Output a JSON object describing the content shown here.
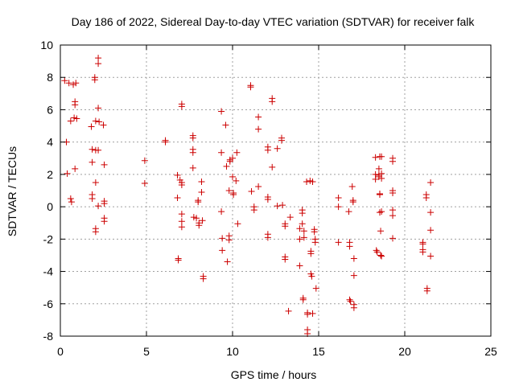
{
  "chart_data": {
    "type": "scatter",
    "title": "Day 186 of 2022, Sidereal Day-to-day VTEC variation (SDTVAR) for receiver falk",
    "xlabel": "GPS time / hours",
    "ylabel": "SDTVAR / TECUs",
    "xlim": [
      0,
      25
    ],
    "ylim": [
      -8,
      10
    ],
    "xticks": [
      0,
      5,
      10,
      15,
      20,
      25
    ],
    "yticks": [
      -8,
      -6,
      -4,
      -2,
      0,
      2,
      4,
      6,
      8,
      10
    ],
    "grid": true,
    "legend": "none",
    "marker": "plus",
    "color": "#cc0000",
    "points": [
      [
        0.25,
        7.8
      ],
      [
        0.35,
        4.0
      ],
      [
        0.4,
        2.05
      ],
      [
        0.5,
        7.65
      ],
      [
        0.6,
        5.3
      ],
      [
        0.6,
        0.5
      ],
      [
        0.65,
        0.3
      ],
      [
        0.75,
        7.55
      ],
      [
        0.8,
        5.5
      ],
      [
        0.85,
        6.5
      ],
      [
        0.85,
        6.3
      ],
      [
        0.85,
        2.35
      ],
      [
        0.9,
        7.65
      ],
      [
        0.95,
        5.45
      ],
      [
        1.8,
        4.95
      ],
      [
        1.85,
        3.55
      ],
      [
        1.85,
        2.75
      ],
      [
        1.85,
        0.75
      ],
      [
        1.85,
        0.5
      ],
      [
        2.0,
        8.0
      ],
      [
        2.0,
        7.85
      ],
      [
        2.05,
        5.3
      ],
      [
        2.05,
        3.5
      ],
      [
        2.05,
        1.5
      ],
      [
        2.05,
        -1.35
      ],
      [
        2.05,
        -1.55
      ],
      [
        2.2,
        9.2
      ],
      [
        2.2,
        8.85
      ],
      [
        2.2,
        6.1
      ],
      [
        2.2,
        3.5
      ],
      [
        2.2,
        0.05
      ],
      [
        2.25,
        5.25
      ],
      [
        2.5,
        5.05
      ],
      [
        2.55,
        2.6
      ],
      [
        2.55,
        0.35
      ],
      [
        2.55,
        0.2
      ],
      [
        2.55,
        -0.7
      ],
      [
        2.55,
        -0.9
      ],
      [
        4.9,
        2.85
      ],
      [
        4.9,
        1.45
      ],
      [
        6.1,
        4.1
      ],
      [
        6.1,
        4.0
      ],
      [
        6.8,
        1.95
      ],
      [
        6.8,
        0.55
      ],
      [
        6.85,
        -3.2
      ],
      [
        6.85,
        -3.3
      ],
      [
        6.95,
        1.65
      ],
      [
        7.05,
        6.35
      ],
      [
        7.05,
        6.2
      ],
      [
        7.05,
        1.5
      ],
      [
        7.05,
        1.35
      ],
      [
        7.05,
        -0.45
      ],
      [
        7.05,
        -0.9
      ],
      [
        7.05,
        -1.25
      ],
      [
        7.7,
        4.4
      ],
      [
        7.7,
        4.25
      ],
      [
        7.7,
        3.55
      ],
      [
        7.7,
        3.35
      ],
      [
        7.7,
        2.4
      ],
      [
        7.75,
        -0.65
      ],
      [
        7.9,
        -0.7
      ],
      [
        8.0,
        0.4
      ],
      [
        8.0,
        0.3
      ],
      [
        8.05,
        -1.0
      ],
      [
        8.05,
        -1.15
      ],
      [
        8.2,
        1.55
      ],
      [
        8.2,
        0.9
      ],
      [
        8.25,
        -0.85
      ],
      [
        8.3,
        -4.3
      ],
      [
        8.3,
        -4.45
      ],
      [
        9.35,
        5.9
      ],
      [
        9.35,
        3.35
      ],
      [
        9.35,
        -0.3
      ],
      [
        9.4,
        -1.95
      ],
      [
        9.4,
        -2.7
      ],
      [
        9.6,
        5.05
      ],
      [
        9.65,
        2.5
      ],
      [
        9.7,
        -3.4
      ],
      [
        9.8,
        1.0
      ],
      [
        9.8,
        -1.8
      ],
      [
        9.8,
        -2.05
      ],
      [
        9.85,
        2.9
      ],
      [
        9.85,
        2.8
      ],
      [
        10.0,
        3.0
      ],
      [
        10.0,
        1.85
      ],
      [
        10.05,
        0.85
      ],
      [
        10.05,
        0.75
      ],
      [
        10.2,
        1.6
      ],
      [
        10.25,
        3.35
      ],
      [
        10.3,
        -1.05
      ],
      [
        11.05,
        7.5
      ],
      [
        11.05,
        7.4
      ],
      [
        11.1,
        0.95
      ],
      [
        11.25,
        0.0
      ],
      [
        11.25,
        -0.2
      ],
      [
        11.5,
        5.55
      ],
      [
        11.5,
        4.8
      ],
      [
        11.5,
        1.25
      ],
      [
        12.05,
        3.7
      ],
      [
        12.05,
        3.5
      ],
      [
        12.05,
        0.6
      ],
      [
        12.05,
        0.45
      ],
      [
        12.05,
        -1.7
      ],
      [
        12.05,
        -1.9
      ],
      [
        12.3,
        6.7
      ],
      [
        12.3,
        6.5
      ],
      [
        12.3,
        2.45
      ],
      [
        12.6,
        3.6
      ],
      [
        12.6,
        0.05
      ],
      [
        12.85,
        4.25
      ],
      [
        12.85,
        4.1
      ],
      [
        12.9,
        0.1
      ],
      [
        13.05,
        -1.05
      ],
      [
        13.05,
        -1.2
      ],
      [
        13.05,
        -3.1
      ],
      [
        13.05,
        -3.25
      ],
      [
        13.25,
        -6.45
      ],
      [
        13.35,
        -0.65
      ],
      [
        13.9,
        -1.35
      ],
      [
        13.9,
        -2.0
      ],
      [
        13.9,
        -3.65
      ],
      [
        14.05,
        -0.2
      ],
      [
        14.05,
        -0.4
      ],
      [
        14.05,
        -1.05
      ],
      [
        14.1,
        -5.75
      ],
      [
        14.1,
        -5.65
      ],
      [
        14.15,
        -1.5
      ],
      [
        14.15,
        -1.9
      ],
      [
        14.3,
        1.55
      ],
      [
        14.35,
        -6.55
      ],
      [
        14.35,
        -6.65
      ],
      [
        14.35,
        -7.6
      ],
      [
        14.35,
        -7.85
      ],
      [
        14.5,
        1.6
      ],
      [
        14.55,
        -2.75
      ],
      [
        14.55,
        -2.9
      ],
      [
        14.55,
        -4.15
      ],
      [
        14.6,
        -4.3
      ],
      [
        14.65,
        1.55
      ],
      [
        14.65,
        -6.6
      ],
      [
        14.75,
        -1.4
      ],
      [
        14.75,
        -1.55
      ],
      [
        14.8,
        -2.0
      ],
      [
        14.8,
        -2.2
      ],
      [
        14.85,
        -5.05
      ],
      [
        16.15,
        0.55
      ],
      [
        16.15,
        0.0
      ],
      [
        16.15,
        -2.2
      ],
      [
        16.75,
        -0.3
      ],
      [
        16.8,
        -2.2
      ],
      [
        16.8,
        -2.45
      ],
      [
        16.8,
        -5.75
      ],
      [
        16.85,
        -5.85
      ],
      [
        16.95,
        1.25
      ],
      [
        17.0,
        0.4
      ],
      [
        17.0,
        0.3
      ],
      [
        17.05,
        -3.2
      ],
      [
        17.05,
        -4.25
      ],
      [
        17.05,
        -6.05
      ],
      [
        17.05,
        -6.25
      ],
      [
        18.3,
        3.05
      ],
      [
        18.3,
        2.0
      ],
      [
        18.3,
        1.7
      ],
      [
        18.35,
        -2.7
      ],
      [
        18.4,
        -2.8
      ],
      [
        18.5,
        2.35
      ],
      [
        18.5,
        1.95
      ],
      [
        18.5,
        1.85
      ],
      [
        18.55,
        3.1
      ],
      [
        18.55,
        0.8
      ],
      [
        18.55,
        0.75
      ],
      [
        18.55,
        -0.35
      ],
      [
        18.6,
        -1.5
      ],
      [
        18.6,
        -3.0
      ],
      [
        18.65,
        3.1
      ],
      [
        18.65,
        2.05
      ],
      [
        18.65,
        1.75
      ],
      [
        18.65,
        -0.3
      ],
      [
        18.65,
        -3.05
      ],
      [
        19.3,
        3.0
      ],
      [
        19.3,
        2.8
      ],
      [
        19.3,
        1.0
      ],
      [
        19.3,
        0.85
      ],
      [
        19.3,
        -0.2
      ],
      [
        19.3,
        -0.55
      ],
      [
        19.3,
        -1.95
      ],
      [
        21.05,
        -2.2
      ],
      [
        21.05,
        -2.3
      ],
      [
        21.05,
        -2.65
      ],
      [
        21.05,
        -2.8
      ],
      [
        21.25,
        0.75
      ],
      [
        21.25,
        0.55
      ],
      [
        21.3,
        -5.05
      ],
      [
        21.3,
        -5.2
      ],
      [
        21.5,
        1.5
      ],
      [
        21.5,
        -0.35
      ],
      [
        21.5,
        -1.45
      ],
      [
        21.5,
        -3.05
      ]
    ]
  }
}
